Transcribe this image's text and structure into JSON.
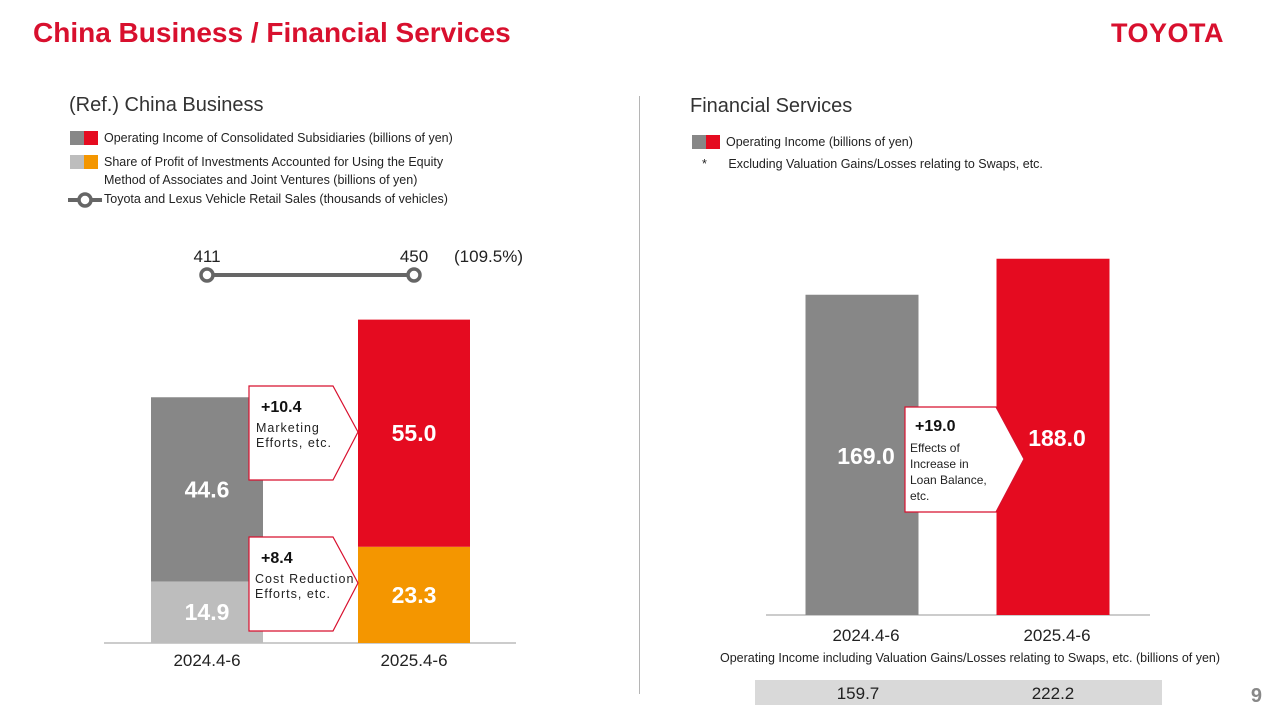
{
  "page_title": "China Business / Financial Services",
  "brand": "TOYOTA",
  "page_number": "9",
  "left": {
    "heading": "(Ref.) China Business",
    "legend": [
      {
        "label": "Operating Income of Consolidated Subsidiaries (billions of yen)",
        "colors": [
          "#878787",
          "#e50b20"
        ]
      },
      {
        "label": "Share of Profit of Investments Accounted for Using the Equity",
        "label2": "Method of Associates and Joint Ventures (billions of yen)",
        "colors": [
          "#bdbdbd",
          "#f49600"
        ]
      },
      {
        "label": "Toyota and Lexus Vehicle Retail Sales (thousands of vehicles)"
      }
    ],
    "callouts": [
      {
        "value": "+10.4",
        "text1": "Marketing",
        "text2": "Efforts, etc."
      },
      {
        "value": "+8.4",
        "text1": "Cost Reduction",
        "text2": "Efforts, etc."
      }
    ]
  },
  "right": {
    "heading": "Financial Services",
    "legend": [
      {
        "label": "Operating Income (billions of yen)",
        "colors": [
          "#878787",
          "#e50b20"
        ]
      }
    ],
    "note_mark": "*",
    "note": "Excluding Valuation Gains/Losses relating to Swaps, etc.",
    "callout": {
      "value": "+19.0",
      "text1": "Effects of",
      "text2": "Increase in",
      "text3": "Loan Balance,",
      "text4": "etc."
    },
    "table_caption": "Operating Income including Valuation Gains/Losses relating to Swaps, etc. (billions of yen)",
    "table_values": [
      "159.7",
      "222.2"
    ]
  },
  "chart_data": [
    {
      "type": "bar",
      "title": "(Ref.) China Business",
      "stacked": true,
      "categories": [
        "2024.4-6",
        "2025.4-6"
      ],
      "series": [
        {
          "name": "Share of Profit of Investments Accounted for Using the Equity Method of Associates and Joint Ventures (billions of yen)",
          "values": [
            14.9,
            23.3
          ],
          "colors": [
            "#bdbdbd",
            "#f49600"
          ]
        },
        {
          "name": "Operating Income of Consolidated Subsidiaries (billions of yen)",
          "values": [
            44.6,
            55.0
          ],
          "colors": [
            "#878787",
            "#e50b20"
          ]
        }
      ],
      "data_labels": [
        [
          "14.9",
          "23.3"
        ],
        [
          "44.6",
          "55.0"
        ]
      ],
      "line_series": {
        "name": "Toyota and Lexus Vehicle Retail Sales (thousands of vehicles)",
        "values": [
          411,
          450
        ],
        "labels": [
          "411",
          "450"
        ],
        "change_label": "(109.5%)"
      },
      "ylim": [
        0,
        80
      ]
    },
    {
      "type": "bar",
      "title": "Financial Services",
      "categories": [
        "2024.4-6",
        "2025.4-6"
      ],
      "values": [
        169.0,
        188.0
      ],
      "labels": [
        "169.0",
        "188.0"
      ],
      "colors": [
        "#878787",
        "#e50b20"
      ],
      "ylim": [
        0,
        210
      ]
    }
  ]
}
